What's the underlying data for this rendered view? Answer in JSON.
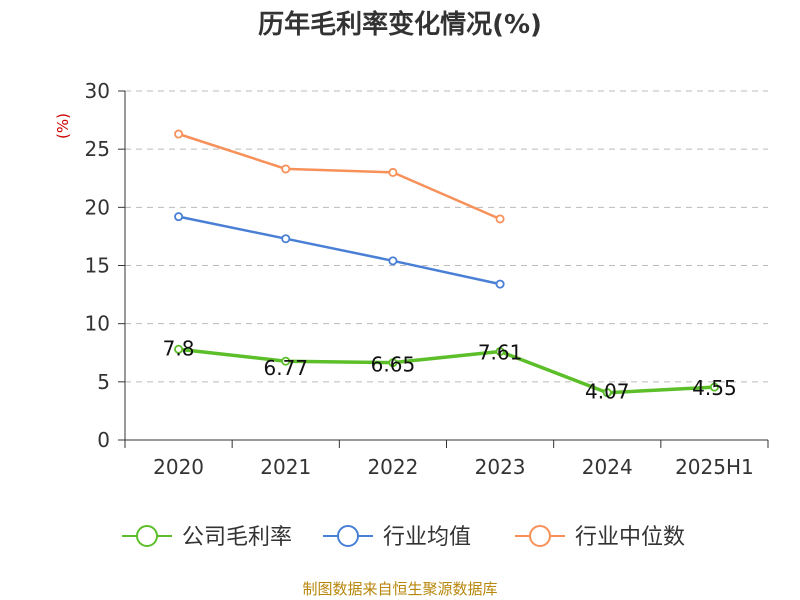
{
  "chart_data": {
    "type": "line",
    "title": "历年毛利率变化情况(%)",
    "unit_label": "(%)",
    "categories": [
      "2020",
      "2021",
      "2022",
      "2023",
      "2024",
      "2025H1"
    ],
    "ylim": [
      0,
      30
    ],
    "yticks": [
      0,
      5,
      10,
      15,
      20,
      25,
      30
    ],
    "grid": true,
    "legend_position": "bottom",
    "series": [
      {
        "name": "公司毛利率",
        "color": "#5cbf2a",
        "values": [
          7.8,
          6.77,
          6.65,
          7.61,
          4.07,
          4.55
        ],
        "labels": [
          "7.8",
          "6.77",
          "6.65",
          "7.61",
          "4.07",
          "4.55"
        ]
      },
      {
        "name": "行业均值",
        "color": "#4a7fd6",
        "values": [
          19.2,
          17.3,
          15.4,
          13.4,
          null,
          null
        ]
      },
      {
        "name": "行业中位数",
        "color": "#f79059",
        "values": [
          26.3,
          23.3,
          23.0,
          19.0,
          null,
          null
        ]
      }
    ],
    "source": "制图数据来自恒生聚源数据库"
  }
}
